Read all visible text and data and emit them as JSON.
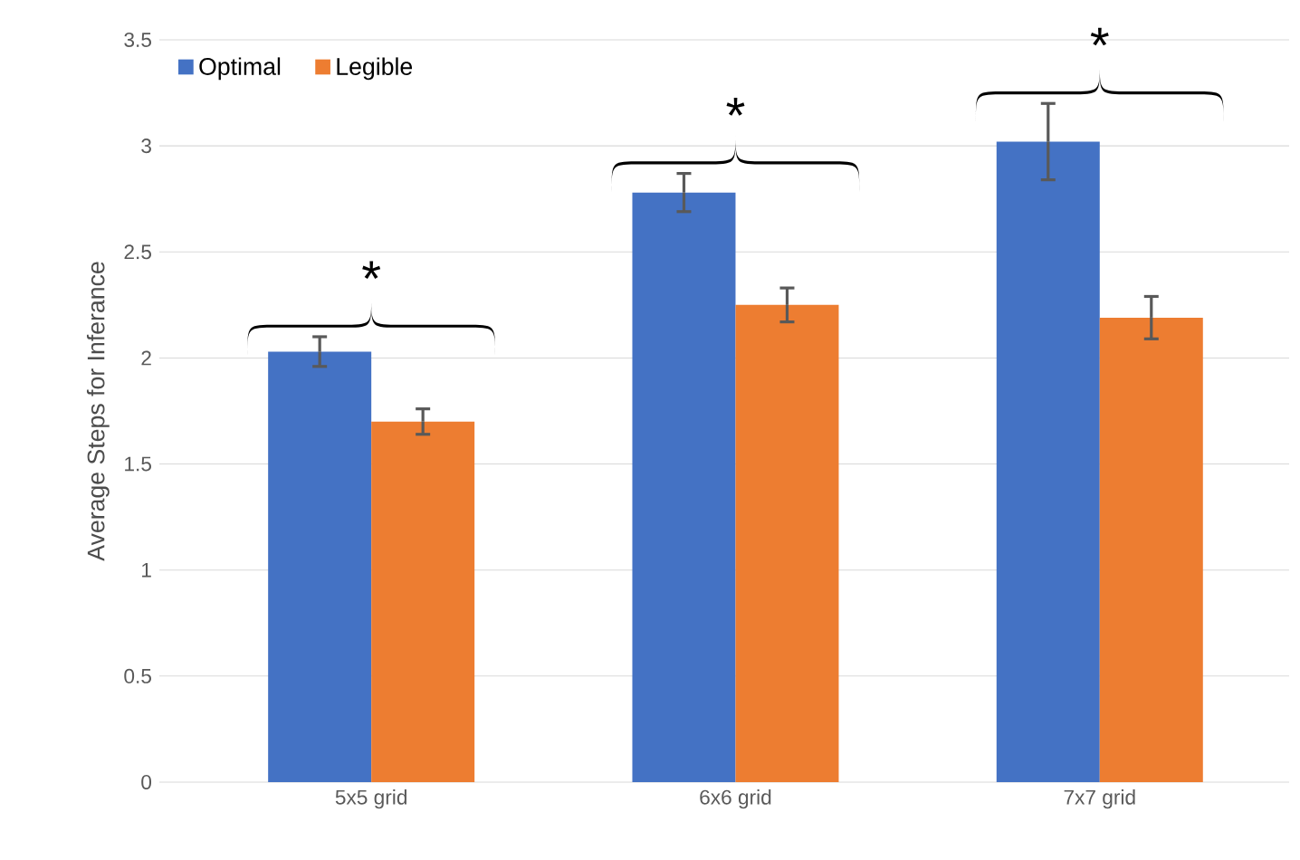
{
  "chart_data": {
    "type": "bar",
    "ylabel": "Average Steps for Inferance",
    "categories": [
      "5x5 grid",
      "6x6 grid",
      "7x7 grid"
    ],
    "series": [
      {
        "name": "Optimal",
        "color": "#4472c4",
        "values": [
          2.03,
          2.78,
          3.02
        ],
        "errors": [
          0.07,
          0.09,
          0.18
        ]
      },
      {
        "name": "Legible",
        "color": "#ed7d31",
        "values": [
          1.7,
          2.25,
          2.19
        ],
        "errors": [
          0.06,
          0.08,
          0.1
        ]
      }
    ],
    "ylim": [
      0,
      3.5
    ],
    "yticks": [
      0,
      0.5,
      1,
      1.5,
      2,
      2.5,
      3,
      3.5
    ],
    "grid": "y",
    "legend": "top left",
    "annotations": [
      "*",
      "*",
      "*"
    ]
  }
}
